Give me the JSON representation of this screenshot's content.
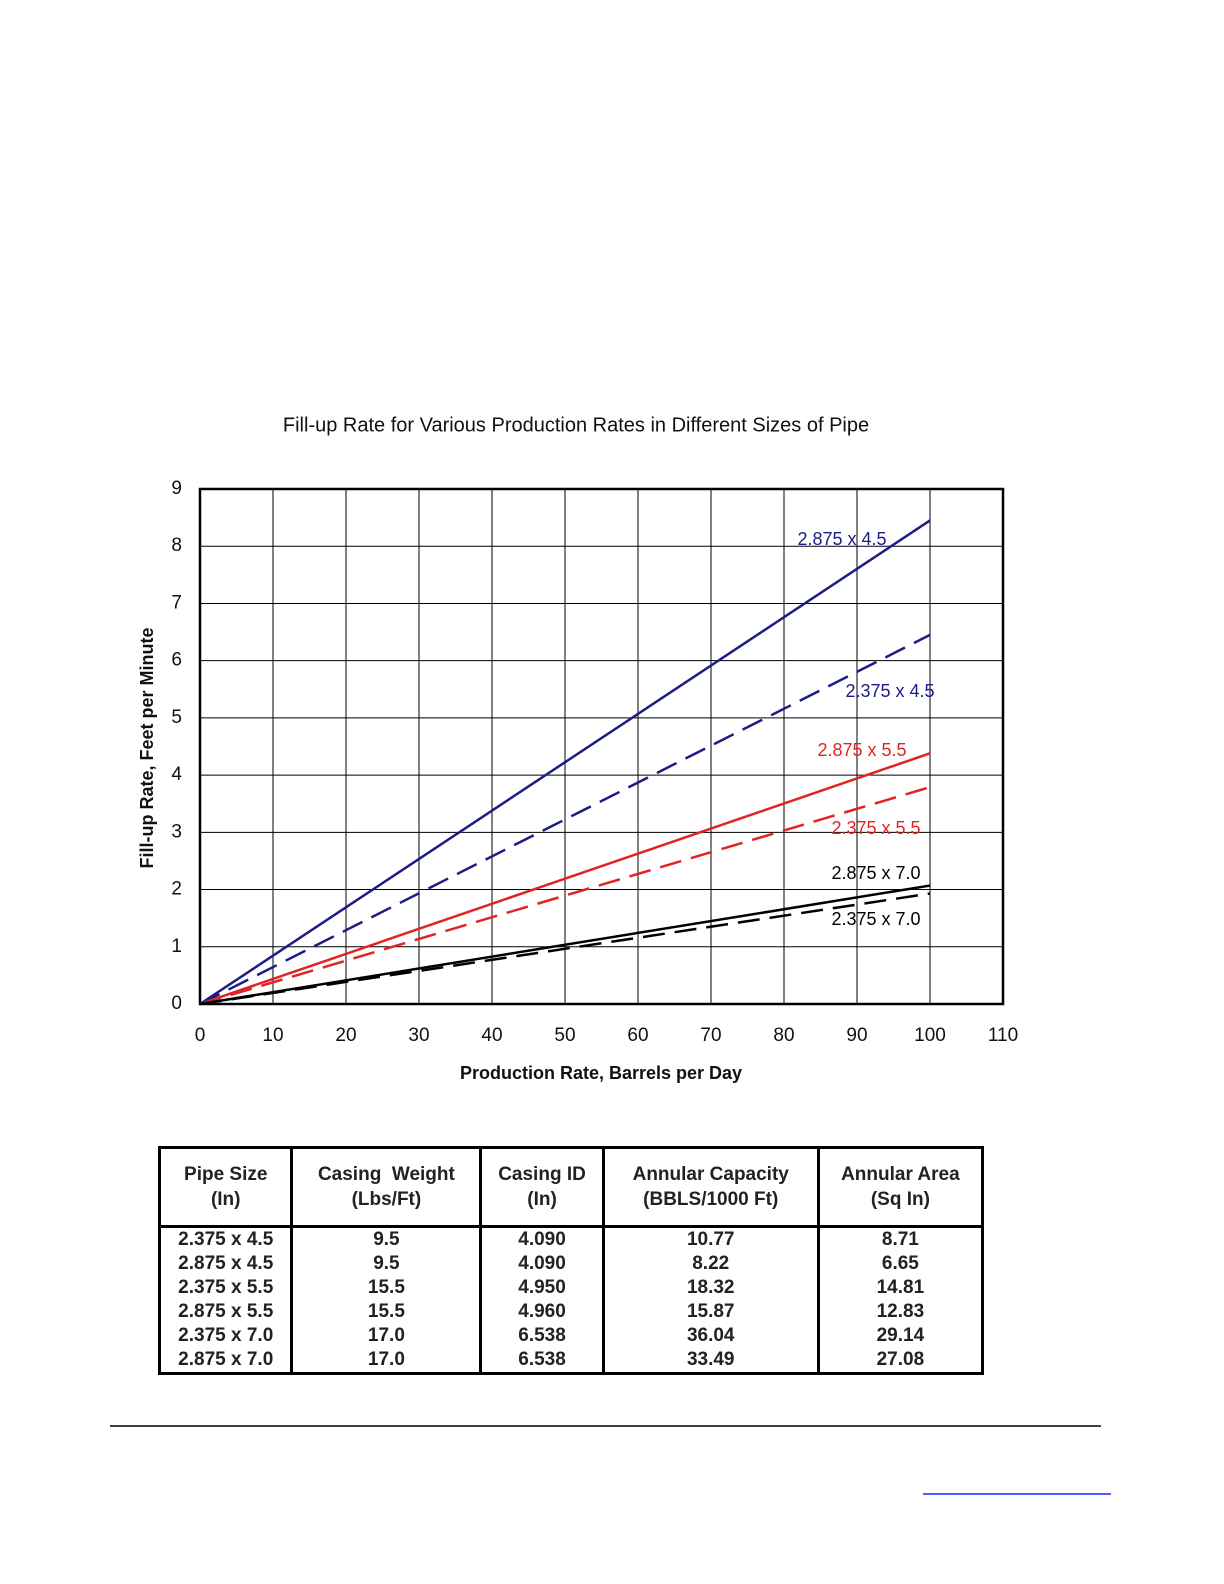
{
  "chart_data": {
    "type": "line",
    "title": "Fill-up Rate for Various Production Rates in Different Sizes of Pipe",
    "x_label": "Production Rate, Barrels per Day",
    "y_label": "Fill-up Rate, Feet per Minute",
    "x": [
      0,
      100
    ],
    "xlim": [
      0,
      110
    ],
    "xticks": [
      0,
      10,
      20,
      30,
      40,
      50,
      60,
      70,
      80,
      90,
      100,
      110
    ],
    "ylim": [
      0,
      9
    ],
    "yticks": [
      0,
      1,
      2,
      3,
      4,
      5,
      6,
      7,
      8,
      9
    ],
    "grid": true,
    "series": [
      {
        "name": "2.875 x 4.5",
        "color": "#1c1c84",
        "dashed": false,
        "values": [
          0,
          8.45
        ]
      },
      {
        "name": "2.375 x 4.5",
        "color": "#1c1c84",
        "dashed": true,
        "values": [
          0,
          6.45
        ]
      },
      {
        "name": "2.875 x 5.5",
        "color": "#e02424",
        "dashed": false,
        "values": [
          0,
          4.38
        ]
      },
      {
        "name": "2.375 x 5.5",
        "color": "#e02424",
        "dashed": true,
        "values": [
          0,
          3.79
        ]
      },
      {
        "name": "2.875 x 7.0",
        "color": "#000000",
        "dashed": false,
        "values": [
          0,
          2.07
        ]
      },
      {
        "name": "2.375 x 7.0",
        "color": "#000000",
        "dashed": true,
        "values": [
          0,
          1.93
        ]
      }
    ]
  },
  "table": {
    "header": [
      [
        "Pipe Size",
        "(In)"
      ],
      [
        "Casing  Weight",
        "(Lbs/Ft)"
      ],
      [
        "Casing ID",
        "(In)"
      ],
      [
        "Annular Capacity",
        "(BBLS/1000 Ft)"
      ],
      [
        "Annular Area",
        "(Sq In)"
      ]
    ],
    "rows": [
      [
        "2.375 x 4.5",
        "9.5",
        "4.090",
        "10.77",
        "8.71"
      ],
      [
        "2.875 x 4.5",
        "9.5",
        "4.090",
        "8.22",
        "6.65"
      ],
      [
        "2.375 x 5.5",
        "15.5",
        "4.950",
        "18.32",
        "14.81"
      ],
      [
        "2.875 x 5.5",
        "15.5",
        "4.960",
        "15.87",
        "12.83"
      ],
      [
        "2.375 x 7.0",
        "17.0",
        "6.538",
        "36.04",
        "29.14"
      ],
      [
        "2.875 x 7.0",
        "17.0",
        "6.538",
        "33.49",
        "27.08"
      ]
    ]
  }
}
